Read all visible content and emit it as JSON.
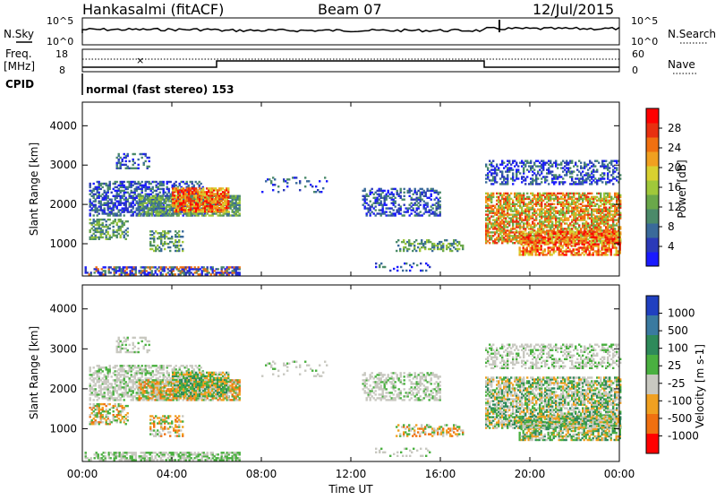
{
  "header": {
    "station": "Hankasalmi (fitACF)",
    "beam": "Beam 07",
    "date": "12/Jul/2015"
  },
  "strip_labels": {
    "nsky": "N.Sky",
    "nsearch": "N.Search",
    "freq_top": "Freq.",
    "freq_unit": "[MHz]",
    "cpid": "CPID",
    "nave": "Nave",
    "nsky_hi": "10^5",
    "nsky_lo": "10^0",
    "nsearch_hi": "10^5",
    "nsearch_lo": "10^0",
    "freq_18": "18",
    "freq_8": "8",
    "nave_60": "60",
    "nave_0": "0",
    "cpid_text": "normal (fast stereo) 153"
  },
  "chart_data": [
    {
      "type": "heatmap",
      "title": "Power",
      "xlabel": "Time UT",
      "ylabel": "Slant Range [km]",
      "x_ticks": [
        "00:00",
        "04:00",
        "08:00",
        "12:00",
        "16:00",
        "20:00",
        "00:00"
      ],
      "y_ticks": [
        "1000",
        "2000",
        "3000",
        "4000"
      ],
      "xlim_hours": [
        0,
        24
      ],
      "ylim_km": [
        180,
        4600
      ],
      "colorbar": {
        "label": "Power [dB]",
        "ticks": [
          "4",
          "8",
          "12",
          "16",
          "20",
          "24",
          "28"
        ],
        "range": [
          0,
          30
        ],
        "colors": [
          "#1a1aff",
          "#2b3ab8",
          "#3a6a9a",
          "#4b8a6a",
          "#6aa84a",
          "#a0c83a",
          "#d8d030",
          "#f0a020",
          "#f07010",
          "#e83010",
          "#ff0000"
        ]
      }
    },
    {
      "type": "heatmap",
      "title": "Velocity",
      "xlabel": "Time UT",
      "ylabel": "Slant Range [km]",
      "x_ticks": [
        "00:00",
        "04:00",
        "08:00",
        "12:00",
        "16:00",
        "20:00",
        "00:00"
      ],
      "y_ticks": [
        "1000",
        "2000",
        "3000",
        "4000"
      ],
      "xlim_hours": [
        0,
        24
      ],
      "ylim_km": [
        180,
        4600
      ],
      "colorbar": {
        "label": "Velocity [m s-1]",
        "ticks": [
          "1000",
          "500",
          "100",
          "25",
          "-25",
          "-100",
          "-500",
          "-1000"
        ],
        "colors": [
          "#2040c0",
          "#3a7aa0",
          "#2e8a5a",
          "#4ab040",
          "#c8c8c0",
          "#f0a020",
          "#f07010",
          "#ff0000"
        ]
      }
    }
  ],
  "time_axis_label": "Time UT"
}
